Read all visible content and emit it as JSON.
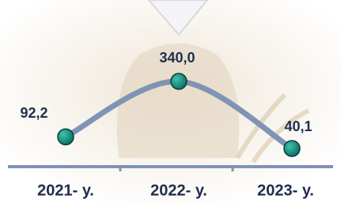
{
  "chart_data": {
    "type": "line",
    "categories": [
      "2021- у.",
      "2022- у.",
      "2023- у."
    ],
    "series": [
      {
        "color": "#7f93b5",
        "values": [
          92.2,
          340.0,
          40.1
        ],
        "value_labels": [
          "92,2",
          "340,0",
          "40,1"
        ]
      }
    ]
  }
}
